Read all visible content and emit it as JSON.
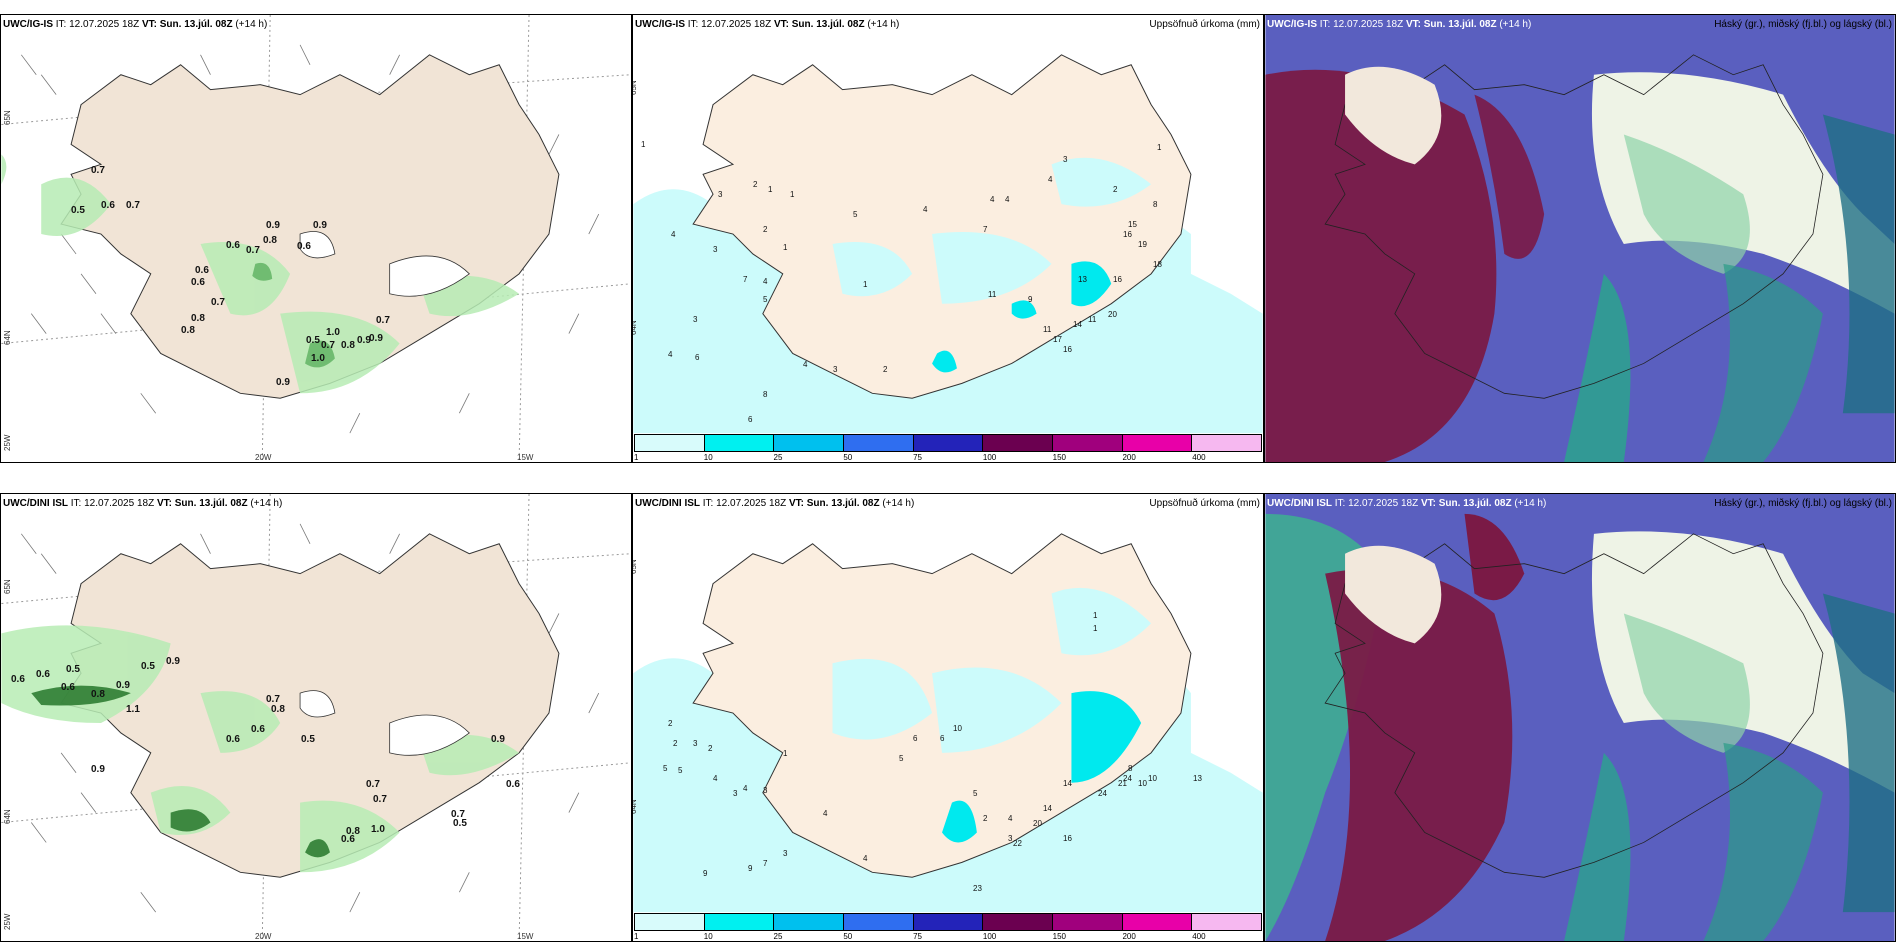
{
  "rows": [
    {
      "model_label": "UWC/IG-IS",
      "it_label": "IT:",
      "it_value": "12.07.2025 18Z",
      "vt_label": "VT:",
      "vt_value": "Sun. 13.júl. 08Z",
      "lead": "(+14 h)",
      "wind_values": [
        "0.7",
        "0.5",
        "0.6",
        "0.7",
        "0.9",
        "0.8",
        "0.6",
        "0.7",
        "0.9",
        "0.6",
        "0.6",
        "0.6",
        "0.8",
        "0.7",
        "0.8",
        "0.5",
        "0.7",
        "1.0",
        "0.8",
        "0.9",
        "0.7",
        "0.9",
        "1.0",
        "0.9"
      ],
      "precip_values": [
        "1",
        "3",
        "2",
        "1",
        "1",
        "4",
        "3",
        "2",
        "1",
        "4",
        "3",
        "7",
        "1",
        "5",
        "5",
        "4",
        "4",
        "4",
        "7",
        "3",
        "4",
        "2",
        "8",
        "1",
        "15",
        "16",
        "19",
        "18",
        "16",
        "20",
        "13",
        "11",
        "14",
        "17",
        "11",
        "16",
        "9",
        "11",
        "4",
        "6",
        "8",
        "6",
        "4",
        "3",
        "2"
      ]
    },
    {
      "model_label": "UWC/DINI ISL",
      "it_label": "IT:",
      "it_value": "12.07.2025 18Z",
      "vt_label": "VT:",
      "vt_value": "Sun. 13.júl. 08Z",
      "lead": "(+14 h)",
      "wind_values": [
        "0.6",
        "0.6",
        "0.5",
        "0.6",
        "0.8",
        "0.9",
        "0.5",
        "0.9",
        "1.1",
        "0.7",
        "0.8",
        "0.6",
        "0.9",
        "0.6",
        "0.5",
        "0.9",
        "0.7",
        "0.7",
        "0.6",
        "0.8",
        "1.0",
        "0.7",
        "0.5",
        "0.6"
      ],
      "precip_values": [
        "2",
        "2",
        "3",
        "2",
        "1",
        "5",
        "5",
        "4",
        "3",
        "4",
        "3",
        "4",
        "10",
        "6",
        "6",
        "5",
        "5",
        "2",
        "4",
        "3",
        "8",
        "10",
        "10",
        "13",
        "14",
        "24",
        "21",
        "24",
        "20",
        "22",
        "23",
        "14",
        "16",
        "9",
        "9",
        "7",
        "3",
        "4",
        "9",
        "7",
        "6",
        "1",
        "1"
      ]
    }
  ],
  "precip_title": "Uppsöfnuð úrkoma (mm)",
  "cloud_title": "Háský (gr.), miðský (fj.bl.) og lágský (bl.)",
  "colorbar": {
    "ticks": [
      "1",
      "10",
      "25",
      "50",
      "75",
      "100",
      "150",
      "200",
      "400"
    ],
    "colors": [
      "#d8fbfb",
      "#00f0f0",
      "#00c0ee",
      "#2f6ef0",
      "#2323b9",
      "#6b0050",
      "#a0007d",
      "#e800a8",
      "#f6b8f0"
    ]
  },
  "axes": {
    "lat_top": "65N",
    "lat_mid": "64N",
    "lat_bottom": "25W",
    "lon_left": "20W",
    "lon_right": "15W"
  }
}
